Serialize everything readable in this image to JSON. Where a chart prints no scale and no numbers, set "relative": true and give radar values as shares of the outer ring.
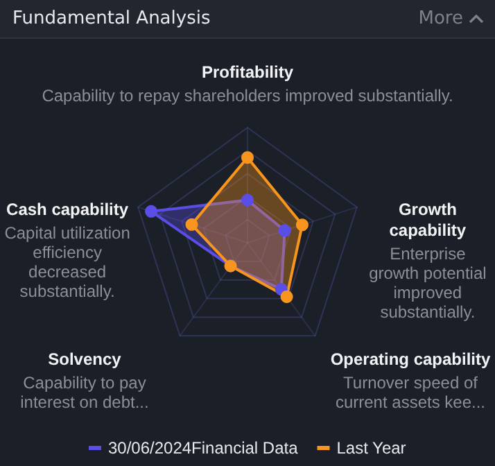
{
  "chart_data": {
    "type": "radar",
    "title": "Fundamental Analysis",
    "relative": true,
    "grid": true,
    "legend": "bottom",
    "marker": "circle",
    "line_style": "solid",
    "categories": [
      "Profitability",
      "Growth capability",
      "Operating capability",
      "Solvency",
      "Cash capability"
    ],
    "annotations": [
      "Capability to repay shareholders improved substantially.",
      "Enterprise growth potential improved substantially.",
      "Turnover speed of current assets kee...",
      "Capability to pay interest on debt...",
      "Capital utilization efficiency decreased substantially.",
      "More"
    ],
    "series": [
      {
        "name": "30/06/2024Financial Data",
        "color": "#5b4ee6",
        "values": [
          0.37,
          0.34,
          0.5,
          0.25,
          0.88
        ]
      },
      {
        "name": "Last Year",
        "color": "#f7951e",
        "values": [
          0.74,
          0.5,
          0.58,
          0.25,
          0.51
        ]
      }
    ]
  }
}
